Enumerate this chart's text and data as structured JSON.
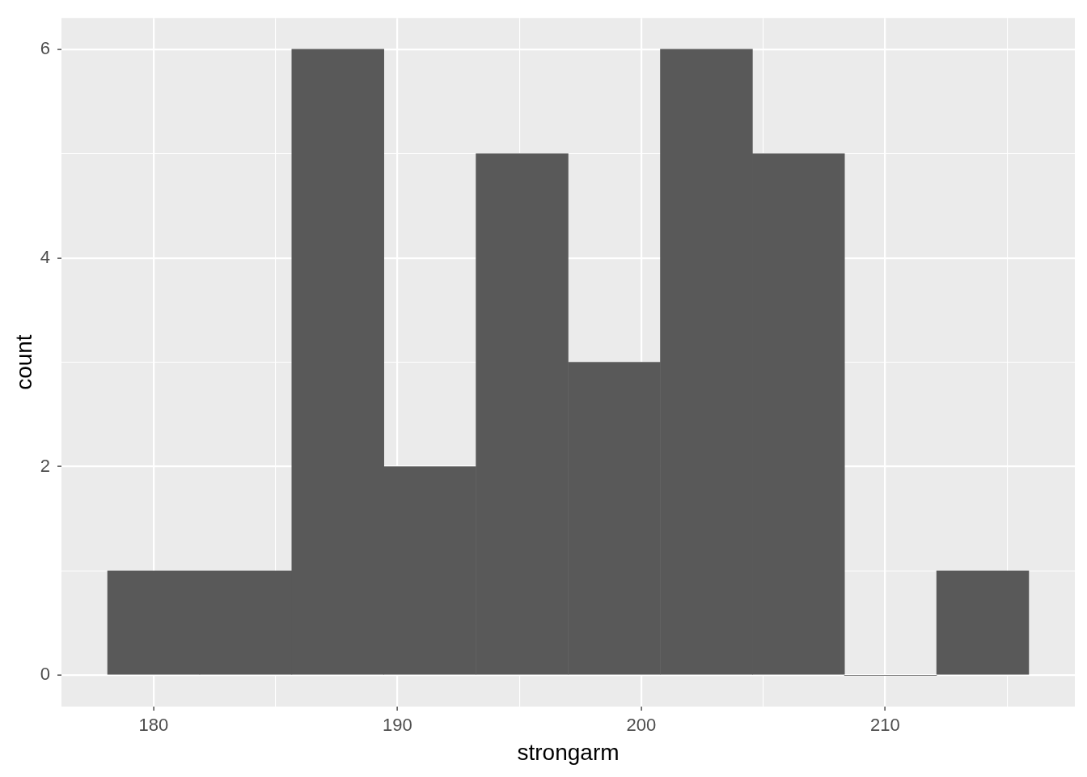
{
  "chart_data": {
    "type": "histogram",
    "xlabel": "strongarm",
    "ylabel": "count",
    "bins": [
      178.11,
      181.89,
      185.67,
      189.44,
      193.22,
      197.0,
      200.78,
      204.56,
      208.33,
      212.11,
      215.89
    ],
    "values": [
      1,
      1,
      6,
      2,
      5,
      3,
      6,
      5,
      0,
      1
    ],
    "color": "#595959",
    "xlim": [
      176.22,
      217.78
    ],
    "xticks": [
      180,
      {
        "value": 185,
        "label": null
      },
      190,
      {
        "value": 195,
        "label": null
      },
      200,
      {
        "value": 205,
        "label": null
      },
      210,
      {
        "value": 215,
        "label": null
      }
    ],
    "ylim": [
      -0.3,
      6.3
    ],
    "yticks": [
      0,
      {
        "value": 1,
        "label": null
      },
      2,
      {
        "value": 3,
        "label": null
      },
      4,
      {
        "value": 5,
        "label": null
      },
      6
    ],
    "grid": true
  }
}
